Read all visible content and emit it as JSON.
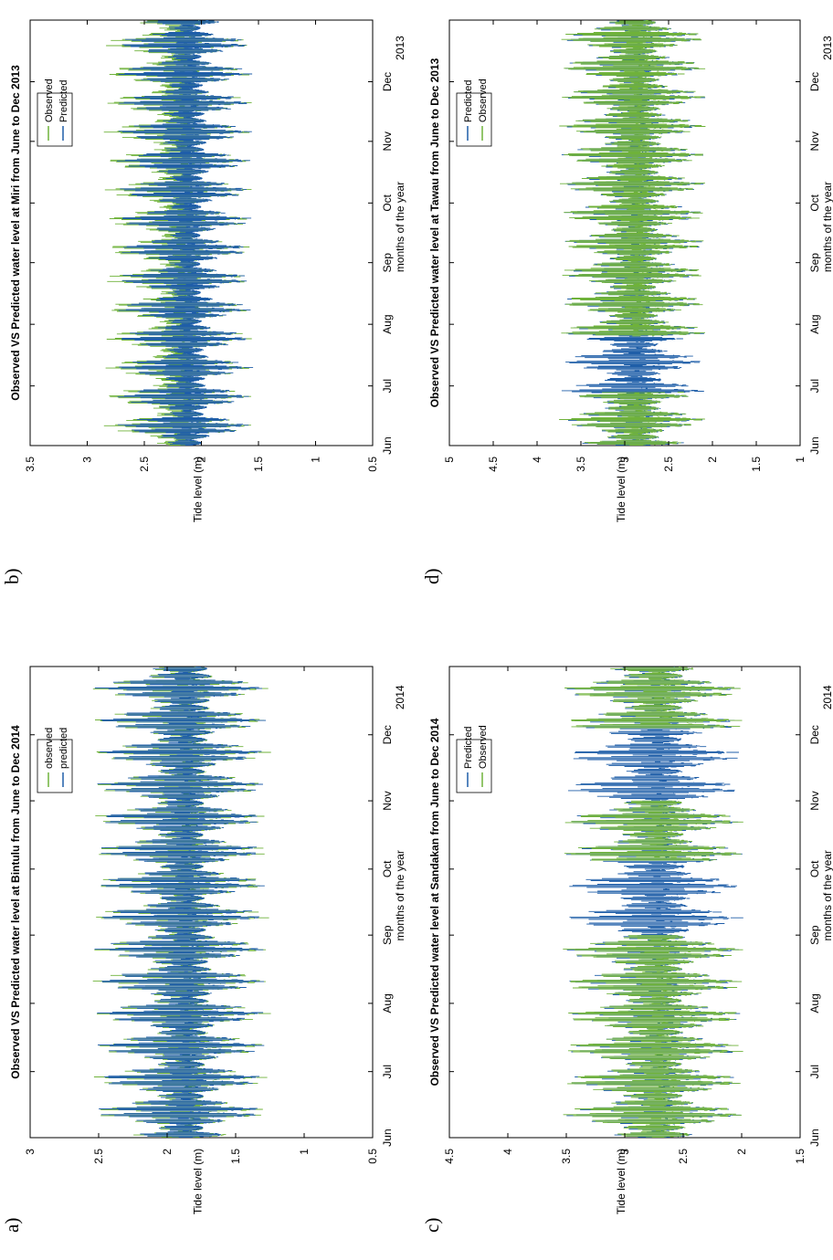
{
  "colors": {
    "observed": "#6fb23a",
    "predicted": "#1f5ea8",
    "axis": "#000000"
  },
  "panels": [
    {
      "letter": "a)"
    },
    {
      "letter": "b)"
    },
    {
      "letter": "c)"
    },
    {
      "letter": "d)"
    }
  ],
  "chart_data": [
    {
      "type": "line",
      "title": "Observed VS Predicted water level at Bintulu from June to Dec 2014",
      "xlabel": "months of the year",
      "ylabel": "Tide level (m)",
      "x_ticks": [
        "Jun",
        "Jul",
        "Aug",
        "Sep",
        "Oct",
        "Nov",
        "Dec"
      ],
      "x_extra_label": "2014",
      "ylim": [
        0.5,
        3
      ],
      "y_ticks": [
        0.5,
        1,
        1.5,
        2,
        2.5,
        3
      ],
      "legend_position": "top-right",
      "series": [
        {
          "name": "observed",
          "color_key": "observed",
          "mean": 1.9,
          "amp_range": [
            0.25,
            1.15
          ],
          "period_days": 14.8,
          "phase": 3
        },
        {
          "name": "predicted",
          "color_key": "predicted",
          "mean": 1.9,
          "amp_range": [
            0.25,
            1.1
          ],
          "period_days": 14.8,
          "phase": 3
        }
      ]
    },
    {
      "type": "line",
      "title": "Observed VS Predicted water level at Miri from June to Dec 2013",
      "xlabel": "months of the year",
      "ylabel": "Tide level (m)",
      "x_ticks": [
        "Jun",
        "Jul",
        "Aug",
        "Sep",
        "Oct",
        "Nov",
        "Dec"
      ],
      "x_extra_label": "2013",
      "ylim": [
        0.5,
        3.5
      ],
      "y_ticks": [
        0.5,
        1,
        1.5,
        2,
        2.5,
        3,
        3.5
      ],
      "legend_position": "top-right",
      "series": [
        {
          "name": "Observed",
          "color_key": "observed",
          "mean": 2.2,
          "amp_range": [
            0.25,
            1.15
          ],
          "period_days": 14.8,
          "phase": 5
        },
        {
          "name": "Predicted",
          "color_key": "predicted",
          "mean": 2.15,
          "amp_range": [
            0.2,
            1.05
          ],
          "period_days": 14.8,
          "phase": 5
        }
      ]
    },
    {
      "type": "line",
      "title": "Observed VS Predicted water level at Sandakan from June to Dec 2014",
      "xlabel": "months of the year",
      "ylabel": "Tide level (m)",
      "x_ticks": [
        "Jun",
        "Jul",
        "Aug",
        "Sep",
        "Oct",
        "Nov",
        "Dec"
      ],
      "x_extra_label": "2014",
      "ylim": [
        1.5,
        4.5
      ],
      "y_ticks": [
        1.5,
        2,
        2.5,
        3,
        3.5,
        4,
        4.5
      ],
      "legend_position": "top-right",
      "series": [
        {
          "name": "Predicted",
          "color_key": "predicted",
          "mean": 2.75,
          "amp_range": [
            0.4,
            1.35
          ],
          "period_days": 14.8,
          "phase": 4
        },
        {
          "name": "Observed",
          "color_key": "observed",
          "mean": 2.75,
          "amp_range": [
            0.4,
            1.4
          ],
          "period_days": 14.8,
          "phase": 4,
          "hidden_spans_days": [
            [
              92,
              126
            ],
            [
              153,
              186
            ]
          ]
        }
      ]
    },
    {
      "type": "line",
      "title": "Observed VS Predicted water level at Tawau from June to Dec 2013",
      "xlabel": "months of the year",
      "ylabel": "Tide level (m)",
      "x_ticks": [
        "Jun",
        "Jul",
        "Aug",
        "Sep",
        "Oct",
        "Nov",
        "Dec"
      ],
      "x_extra_label": "2013",
      "ylim": [
        1,
        5
      ],
      "y_ticks": [
        1,
        1.5,
        2,
        2.5,
        3,
        3.5,
        4,
        4.5,
        5
      ],
      "legend_position": "top-right",
      "series": [
        {
          "name": "Predicted",
          "color_key": "predicted",
          "mean": 2.9,
          "amp_range": [
            0.45,
            1.45
          ],
          "period_days": 14.8,
          "phase": 2
        },
        {
          "name": "Observed",
          "color_key": "observed",
          "mean": 2.9,
          "amp_range": [
            0.45,
            1.5
          ],
          "period_days": 14.8,
          "phase": 2,
          "hidden_spans_days": [
            [
              27,
              55
            ]
          ]
        }
      ]
    }
  ]
}
